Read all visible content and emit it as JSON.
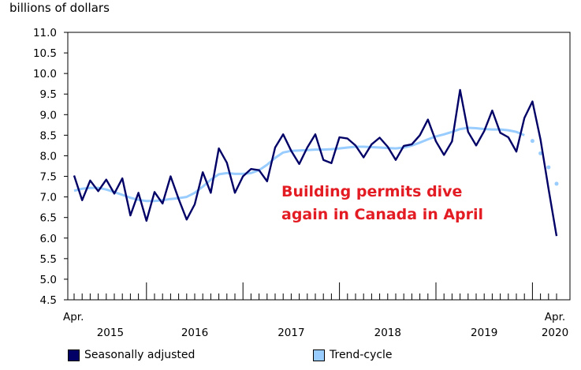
{
  "chart_data": {
    "type": "line",
    "ylabel": "billions of dollars",
    "ylim": [
      4.5,
      11.0
    ],
    "yticks": [
      "11.0",
      "10.5",
      "10.0",
      "9.5",
      "9.0",
      "8.5",
      "8.0",
      "7.5",
      "7.0",
      "6.5",
      "6.0",
      "5.5",
      "5.0",
      "4.5"
    ],
    "x_start_label": "Apr.",
    "x_end_label_month": "Apr.",
    "x_end_label_year": "2020",
    "year_labels": [
      "2015",
      "2016",
      "2017",
      "2018",
      "2019"
    ],
    "annotation": [
      "Building permits dive",
      "again in Canada in April"
    ],
    "months": [
      "2015-04",
      "2015-05",
      "2015-06",
      "2015-07",
      "2015-08",
      "2015-09",
      "2015-10",
      "2015-11",
      "2015-12",
      "2016-01",
      "2016-02",
      "2016-03",
      "2016-04",
      "2016-05",
      "2016-06",
      "2016-07",
      "2016-08",
      "2016-09",
      "2016-10",
      "2016-11",
      "2016-12",
      "2017-01",
      "2017-02",
      "2017-03",
      "2017-04",
      "2017-05",
      "2017-06",
      "2017-07",
      "2017-08",
      "2017-09",
      "2017-10",
      "2017-11",
      "2017-12",
      "2018-01",
      "2018-02",
      "2018-03",
      "2018-04",
      "2018-05",
      "2018-06",
      "2018-07",
      "2018-08",
      "2018-09",
      "2018-10",
      "2018-11",
      "2018-12",
      "2019-01",
      "2019-02",
      "2019-03",
      "2019-04",
      "2019-05",
      "2019-06",
      "2019-07",
      "2019-08",
      "2019-09",
      "2019-10",
      "2019-11",
      "2019-12",
      "2020-01",
      "2020-02",
      "2020-03",
      "2020-04"
    ],
    "series": [
      {
        "name": "Seasonally adjusted",
        "color": "#000066",
        "values": [
          7.52,
          6.92,
          7.4,
          7.14,
          7.42,
          7.08,
          7.45,
          6.55,
          7.1,
          6.42,
          7.12,
          6.84,
          7.5,
          6.95,
          6.45,
          6.82,
          7.6,
          7.1,
          8.18,
          7.83,
          7.1,
          7.5,
          7.68,
          7.65,
          7.38,
          8.2,
          8.52,
          8.12,
          7.8,
          8.2,
          8.52,
          7.9,
          7.82,
          8.45,
          8.42,
          8.25,
          7.96,
          8.28,
          8.44,
          8.22,
          7.9,
          8.24,
          8.28,
          8.5,
          8.88,
          8.35,
          8.02,
          8.35,
          9.6,
          8.58,
          8.25,
          8.6,
          9.1,
          8.56,
          8.45,
          8.1,
          8.92,
          9.32,
          8.4,
          7.2,
          6.05
        ]
      },
      {
        "name": "Trend-cycle",
        "color": "#99ccff",
        "values": [
          7.15,
          7.2,
          7.22,
          7.22,
          7.18,
          7.12,
          7.05,
          6.98,
          6.93,
          6.9,
          6.9,
          6.92,
          6.95,
          6.97,
          7.0,
          7.1,
          7.25,
          7.42,
          7.55,
          7.58,
          7.56,
          7.56,
          7.58,
          7.65,
          7.78,
          7.95,
          8.08,
          8.12,
          8.13,
          8.14,
          8.15,
          8.15,
          8.16,
          8.18,
          8.2,
          8.22,
          8.22,
          8.21,
          8.2,
          8.19,
          8.18,
          8.2,
          8.25,
          8.32,
          8.4,
          8.47,
          8.52,
          8.58,
          8.65,
          8.68,
          8.67,
          8.65,
          8.64,
          8.64,
          8.62,
          8.58,
          8.5,
          8.36,
          8.06,
          7.72,
          7.32
        ],
        "projected_from_index": 57
      }
    ]
  },
  "legend": {
    "items": [
      {
        "label": "Seasonally adjusted",
        "color": "#000066"
      },
      {
        "label": "Trend-cycle",
        "color": "#99ccff"
      }
    ]
  }
}
